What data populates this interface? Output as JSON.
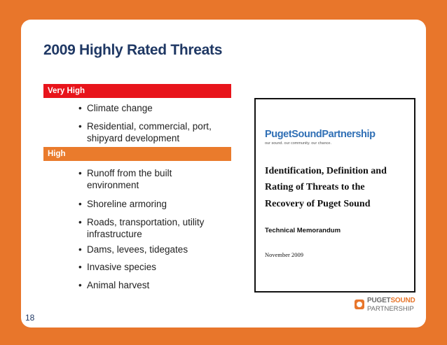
{
  "slide": {
    "title": "2009 Highly Rated Threats",
    "sections": [
      {
        "label": "Very High",
        "items": [
          "Climate change",
          "Residential, commercial, port, shipyard development"
        ]
      },
      {
        "label": "High",
        "items": [
          "Runoff from the built environment",
          "Shoreline armoring",
          "Roads, transportation, utility infrastructure",
          "Dams, levees, tidegates",
          "Invasive species",
          "Animal harvest"
        ]
      }
    ],
    "page_number": "18"
  },
  "document": {
    "brand": "PugetSoundPartnership",
    "tagline": "our sound. our community. our chance.",
    "title_lines": [
      "Identification, Definition and",
      "Rating of Threats to the",
      "Recovery of Puget Sound"
    ],
    "subtitle": "Technical Memorandum",
    "date": "November 2009"
  },
  "logo": {
    "puget": "PUGET",
    "sound": "SOUND",
    "partnership": "PARTNERSHIP"
  }
}
